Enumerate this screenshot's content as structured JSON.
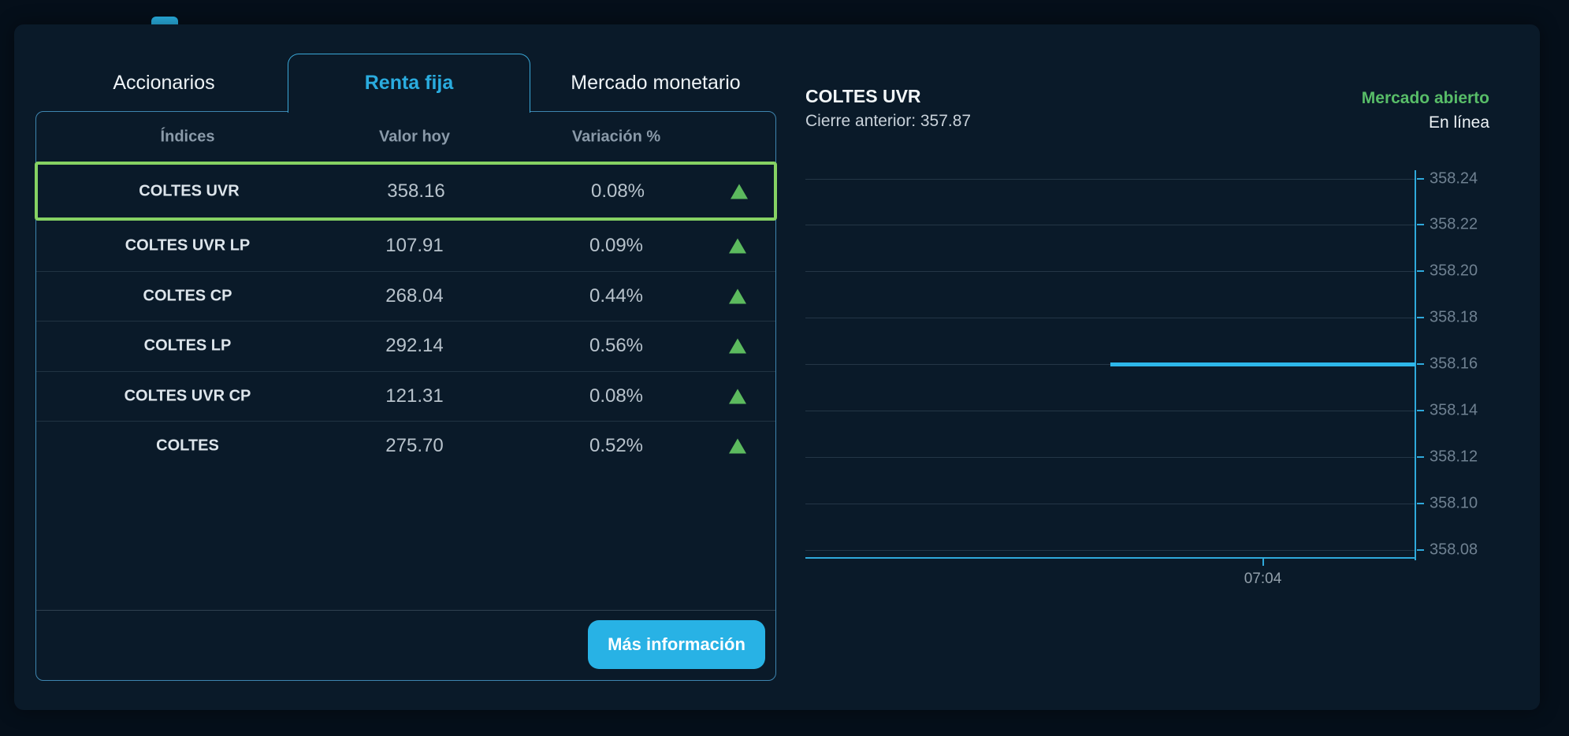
{
  "page": {
    "accent": "#29abe2",
    "card_bg": "#0a1a29",
    "outer_bg": "#050f1a",
    "selected_row_border": "#86d263",
    "up_triangle_color": "#5cba5e"
  },
  "tabs": [
    {
      "label": "Accionarios",
      "active": false
    },
    {
      "label": "Renta fija",
      "active": true
    },
    {
      "label": "Mercado monetario",
      "active": false
    }
  ],
  "table": {
    "headers": [
      "Índices",
      "Valor hoy",
      "Variación %"
    ],
    "rows": [
      {
        "name": "COLTES UVR",
        "value": "358.16",
        "variation": "0.08%",
        "direction": "up",
        "selected": true
      },
      {
        "name": "COLTES UVR LP",
        "value": "107.91",
        "variation": "0.09%",
        "direction": "up",
        "selected": false
      },
      {
        "name": "COLTES CP",
        "value": "268.04",
        "variation": "0.44%",
        "direction": "up",
        "selected": false
      },
      {
        "name": "COLTES LP",
        "value": "292.14",
        "variation": "0.56%",
        "direction": "up",
        "selected": false
      },
      {
        "name": "COLTES UVR CP",
        "value": "121.31",
        "variation": "0.08%",
        "direction": "up",
        "selected": false
      },
      {
        "name": "COLTES",
        "value": "275.70",
        "variation": "0.52%",
        "direction": "up",
        "selected": false
      }
    ],
    "button_label": "Más información"
  },
  "detail": {
    "title": "COLTES UVR",
    "previous_close_label": "Cierre anterior: 357.87",
    "market_status": "Mercado abierto",
    "online_status": "En línea"
  },
  "chart_data": {
    "type": "line",
    "title": "COLTES UVR intraday",
    "previous_close": 357.87,
    "current_value": 358.16,
    "y_ticks": [
      "358.24",
      "358.22",
      "358.20",
      "358.18",
      "358.16",
      "358.14",
      "358.12",
      "358.10",
      "358.08"
    ],
    "ylim": [
      358.08,
      358.24
    ],
    "x_ticks": [
      {
        "label": "07:04",
        "frac": 0.75
      }
    ],
    "series": [
      {
        "name": "COLTES UVR",
        "points": [
          {
            "x_frac": 0.5,
            "y": 358.16
          },
          {
            "x_frac": 1.0,
            "y": 358.16
          }
        ]
      }
    ],
    "grid": true,
    "legend_position": "none",
    "line_color": "#2db7ea"
  }
}
